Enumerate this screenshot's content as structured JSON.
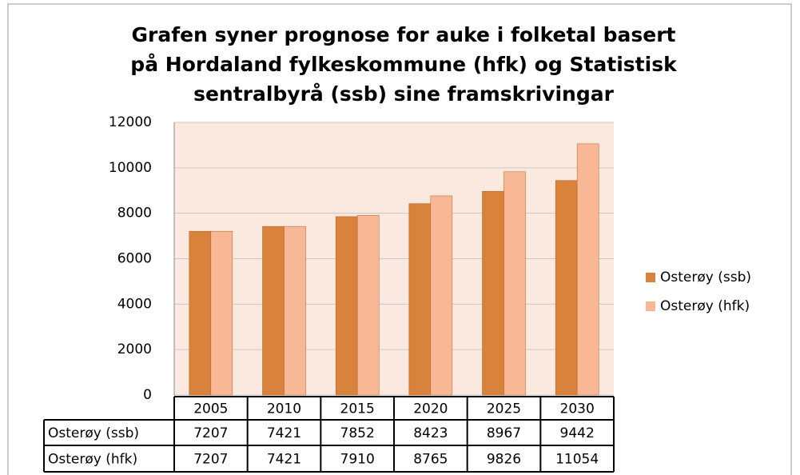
{
  "chart_data": {
    "type": "bar",
    "title": [
      "Grafen syner prognose for auke i folketal basert",
      "på Hordaland fylkeskommune (hfk) og Statistisk",
      "sentralbyrå (ssb) sine framskrivingar"
    ],
    "categories": [
      "2005",
      "2010",
      "2015",
      "2020",
      "2025",
      "2030"
    ],
    "series": [
      {
        "name": "Osterøy (ssb)",
        "color": "#d9823b",
        "values": [
          7207,
          7421,
          7852,
          8423,
          8967,
          9442
        ]
      },
      {
        "name": "Osterøy (hfk)",
        "color": "#f8b895",
        "values": [
          7207,
          7421,
          7910,
          8765,
          9826,
          11054
        ]
      }
    ],
    "ylim": [
      0,
      12000
    ],
    "yticks": [
      0,
      2000,
      4000,
      6000,
      8000,
      10000,
      12000
    ],
    "grid": true,
    "legend": "right",
    "data_table": true
  }
}
